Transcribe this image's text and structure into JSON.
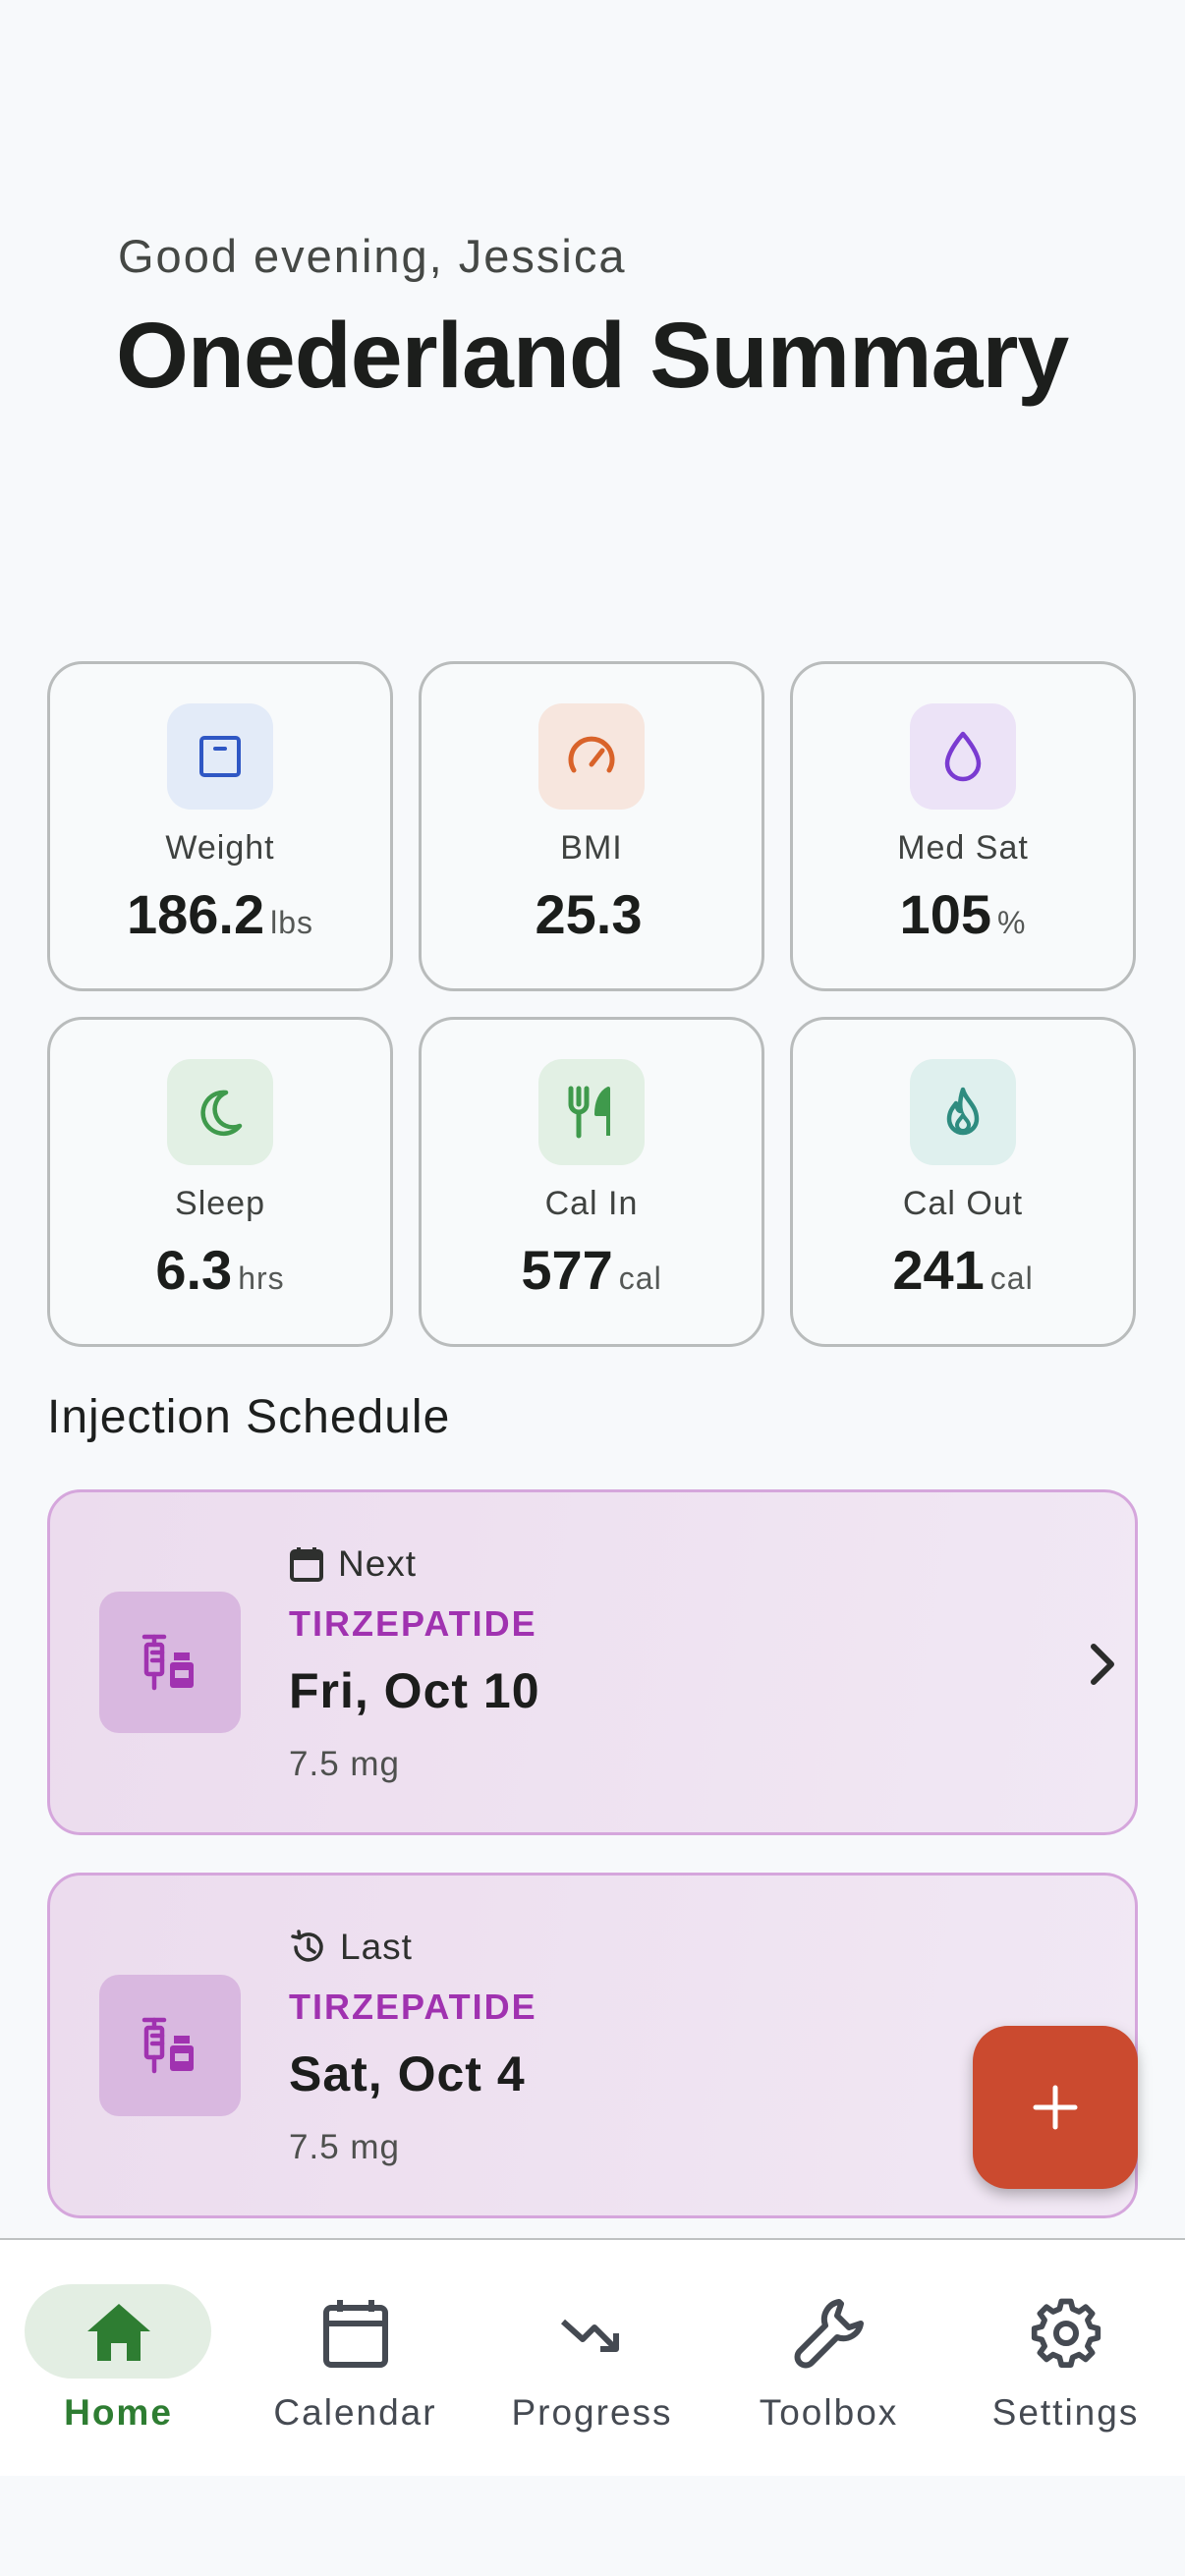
{
  "header": {
    "greeting": "Good evening, Jessica",
    "title": "Onederland Summary"
  },
  "stats": [
    {
      "label": "Weight",
      "value": "186.2",
      "unit": "lbs",
      "icon": "scale-icon",
      "color": "#2f57c4",
      "bg": "#e3ebf8"
    },
    {
      "label": "BMI",
      "value": "25.3",
      "unit": "",
      "icon": "gauge-icon",
      "color": "#d9632a",
      "bg": "#f7e6de"
    },
    {
      "label": "Med Sat",
      "value": "105",
      "unit": "%",
      "icon": "droplet-icon",
      "color": "#7a3bd1",
      "bg": "#ece3f7"
    },
    {
      "label": "Sleep",
      "value": "6.3",
      "unit": "hrs",
      "icon": "moon-icon",
      "color": "#3f9a4c",
      "bg": "#e2f0e4"
    },
    {
      "label": "Cal In",
      "value": "577",
      "unit": "cal",
      "icon": "fork-knife-icon",
      "color": "#3f9a4c",
      "bg": "#e2f0e4"
    },
    {
      "label": "Cal Out",
      "value": "241",
      "unit": "cal",
      "icon": "flame-icon",
      "color": "#2f8c80",
      "bg": "#dff0ee"
    }
  ],
  "injection": {
    "section_title": "Injection Schedule",
    "next": {
      "tag": "Next",
      "drug": "TIRZEPATIDE",
      "date": "Fri, Oct 10",
      "dose": "7.5 mg"
    },
    "last": {
      "tag": "Last",
      "drug": "TIRZEPATIDE",
      "date": "Sat, Oct 4",
      "dose": "7.5 mg"
    }
  },
  "fab": {
    "icon": "plus-icon"
  },
  "nav": {
    "items": [
      {
        "label": "Home",
        "icon": "home-icon",
        "active": true
      },
      {
        "label": "Calendar",
        "icon": "calendar-icon"
      },
      {
        "label": "Progress",
        "icon": "trending-down-icon"
      },
      {
        "label": "Toolbox",
        "icon": "wrench-icon"
      },
      {
        "label": "Settings",
        "icon": "gear-icon"
      }
    ]
  },
  "colors": {
    "accent_green": "#2e7d32",
    "injection_purple": "#a032b0",
    "fab_red": "#cb4a2f"
  }
}
